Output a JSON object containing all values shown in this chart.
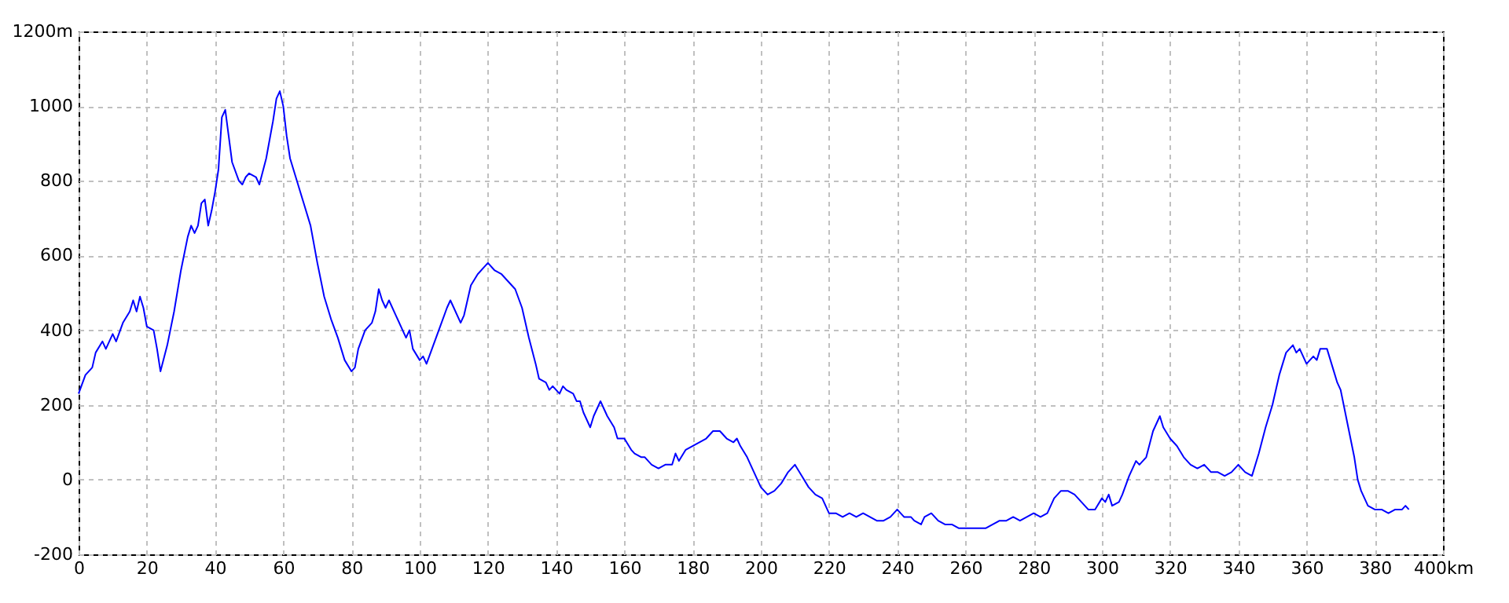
{
  "chart_data": {
    "type": "line",
    "grid": true,
    "line_style": "solid",
    "xlim": [
      0,
      400
    ],
    "xticks": [
      0,
      20,
      40,
      60,
      80,
      100,
      120,
      140,
      160,
      180,
      200,
      220,
      240,
      260,
      280,
      300,
      320,
      340,
      360,
      380,
      {
        "value": 400,
        "label": "400km"
      }
    ],
    "ylim": [
      -200,
      1200
    ],
    "yticks": [
      -200,
      0,
      200,
      400,
      600,
      800,
      1000,
      {
        "value": 1200,
        "label": "1200m"
      }
    ],
    "x": [
      0,
      2,
      4,
      5,
      7,
      8,
      10,
      11,
      13,
      15,
      16,
      17,
      18,
      19,
      20,
      22,
      23,
      24,
      26,
      28,
      30,
      32,
      33,
      34,
      35,
      36,
      37,
      38,
      39,
      40,
      41,
      42,
      43,
      44,
      45,
      47,
      48,
      49,
      50,
      52,
      53,
      55,
      57,
      58,
      59,
      60,
      61,
      62,
      64,
      66,
      68,
      70,
      72,
      74,
      76,
      78,
      80,
      81,
      82,
      84,
      86,
      87,
      88,
      89,
      90,
      91,
      93,
      95,
      96,
      97,
      98,
      100,
      101,
      102,
      104,
      106,
      108,
      109,
      110,
      112,
      113,
      115,
      117,
      119,
      120,
      122,
      124,
      126,
      128,
      130,
      132,
      134,
      135,
      137,
      138,
      139,
      140,
      141,
      142,
      143,
      145,
      146,
      147,
      148,
      150,
      151,
      152,
      153,
      154,
      155,
      157,
      158,
      160,
      162,
      163,
      165,
      166,
      168,
      170,
      172,
      174,
      175,
      176,
      178,
      180,
      182,
      184,
      186,
      188,
      190,
      192,
      193,
      194,
      196,
      198,
      200,
      202,
      204,
      206,
      208,
      210,
      212,
      214,
      216,
      218,
      220,
      222,
      224,
      226,
      228,
      230,
      232,
      234,
      236,
      238,
      240,
      241,
      242,
      244,
      245,
      247,
      248,
      250,
      252,
      254,
      256,
      258,
      260,
      262,
      264,
      266,
      268,
      270,
      272,
      274,
      276,
      278,
      280,
      282,
      284,
      286,
      288,
      290,
      292,
      294,
      296,
      298,
      300,
      301,
      302,
      303,
      305,
      306,
      308,
      310,
      311,
      313,
      315,
      317,
      318,
      320,
      322,
      324,
      326,
      328,
      330,
      332,
      334,
      336,
      338,
      340,
      342,
      344,
      346,
      348,
      350,
      352,
      354,
      356,
      357,
      358,
      360,
      362,
      363,
      364,
      366,
      368,
      369,
      370,
      372,
      374,
      375,
      376,
      378,
      380,
      382,
      384,
      386,
      388,
      389,
      390
    ],
    "series": [
      {
        "color": "#0000ff",
        "values": [
          230,
          280,
          300,
          340,
          370,
          350,
          390,
          370,
          420,
          450,
          480,
          450,
          490,
          460,
          410,
          400,
          350,
          290,
          360,
          450,
          560,
          650,
          680,
          660,
          680,
          740,
          750,
          680,
          720,
          770,
          830,
          970,
          990,
          920,
          850,
          800,
          790,
          810,
          820,
          810,
          790,
          860,
          960,
          1020,
          1040,
          1000,
          920,
          860,
          800,
          740,
          680,
          580,
          490,
          430,
          380,
          320,
          290,
          300,
          350,
          400,
          420,
          450,
          510,
          480,
          460,
          480,
          440,
          400,
          380,
          400,
          350,
          320,
          330,
          310,
          360,
          410,
          460,
          480,
          460,
          420,
          440,
          520,
          550,
          570,
          580,
          560,
          550,
          530,
          510,
          460,
          380,
          310,
          270,
          260,
          240,
          250,
          240,
          230,
          250,
          240,
          230,
          210,
          210,
          180,
          140,
          170,
          190,
          210,
          190,
          170,
          140,
          110,
          110,
          80,
          70,
          60,
          60,
          40,
          30,
          40,
          40,
          70,
          50,
          80,
          90,
          100,
          110,
          130,
          130,
          110,
          100,
          110,
          90,
          60,
          20,
          -20,
          -40,
          -30,
          -10,
          20,
          40,
          10,
          -20,
          -40,
          -50,
          -90,
          -90,
          -100,
          -90,
          -100,
          -90,
          -100,
          -110,
          -110,
          -100,
          -80,
          -90,
          -100,
          -100,
          -110,
          -120,
          -100,
          -90,
          -110,
          -120,
          -120,
          -130,
          -130,
          -130,
          -130,
          -130,
          -120,
          -110,
          -110,
          -100,
          -110,
          -100,
          -90,
          -100,
          -90,
          -50,
          -30,
          -30,
          -40,
          -60,
          -80,
          -80,
          -50,
          -60,
          -40,
          -70,
          -60,
          -40,
          10,
          50,
          40,
          60,
          130,
          170,
          140,
          110,
          90,
          60,
          40,
          30,
          40,
          20,
          20,
          10,
          20,
          40,
          20,
          10,
          70,
          140,
          200,
          280,
          340,
          360,
          340,
          350,
          310,
          330,
          320,
          350,
          350,
          290,
          260,
          240,
          150,
          60,
          0,
          -30,
          -70,
          -80,
          -80,
          -90,
          -80,
          -80,
          -70,
          -80
        ]
      }
    ]
  }
}
